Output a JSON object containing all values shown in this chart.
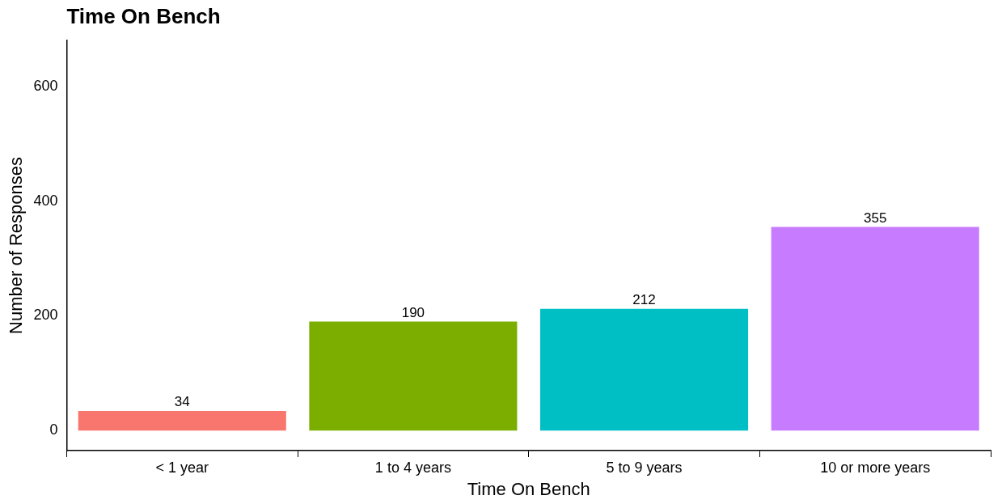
{
  "chart_data": {
    "type": "bar",
    "title": "Time On Bench",
    "xlabel": "Time On Bench",
    "ylabel": "Number of Responses",
    "categories": [
      "< 1 year",
      "1 to 4 years",
      "5 to 9 years",
      "10 or more years"
    ],
    "values": [
      34,
      190,
      212,
      355
    ],
    "colors": [
      "#f8766d",
      "#7cae00",
      "#00bfc4",
      "#c77cff"
    ],
    "ylim": [
      -35,
      680
    ],
    "yticks": [
      0,
      200,
      400,
      600
    ],
    "grid": false,
    "legend": false,
    "data_labels": true
  }
}
